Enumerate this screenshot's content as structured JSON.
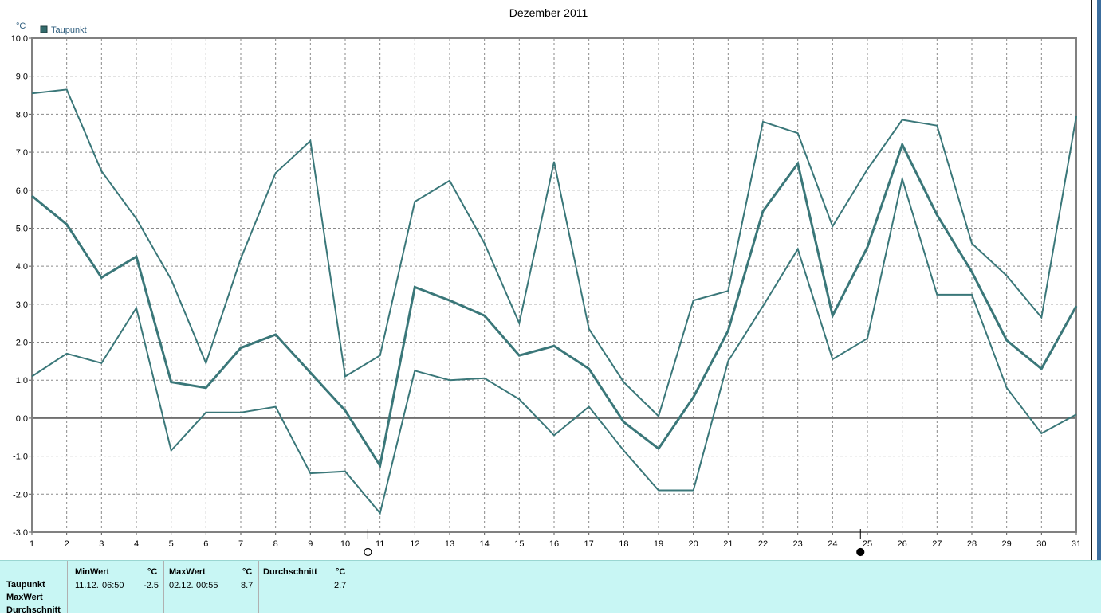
{
  "chart_data": {
    "type": "line",
    "title": "Dezember 2011",
    "unit": "°C",
    "legend": [
      {
        "name": "Taupunkt",
        "color": "#336b6c"
      }
    ],
    "legend_position": "top-left",
    "x": [
      1,
      2,
      3,
      4,
      5,
      6,
      7,
      8,
      9,
      10,
      11,
      12,
      13,
      14,
      15,
      16,
      17,
      18,
      19,
      20,
      21,
      22,
      23,
      24,
      25,
      26,
      27,
      28,
      29,
      30,
      31
    ],
    "ylim": [
      -3.0,
      10.0
    ],
    "yticks": [
      "10.0",
      "9.0",
      "8.0",
      "7.0",
      "6.0",
      "5.0",
      "4.0",
      "3.0",
      "2.0",
      "1.0",
      "0.0",
      "-1.0",
      "-2.0",
      "-3.0"
    ],
    "grid": true,
    "line_color": "#3a7779",
    "series": [
      {
        "values": [
          8.55,
          8.65,
          6.5,
          5.25,
          3.65,
          1.45,
          4.2,
          6.45,
          7.3,
          1.1,
          1.65,
          5.7,
          6.25,
          4.6,
          2.5,
          6.75,
          2.35,
          0.95,
          0.05,
          3.1,
          3.35,
          7.8,
          7.5,
          5.05,
          6.55,
          7.85,
          7.7,
          4.6,
          3.75,
          2.65,
          7.95
        ]
      },
      {
        "values": [
          5.85,
          5.1,
          3.7,
          4.25,
          0.95,
          0.8,
          1.85,
          2.2,
          1.2,
          0.2,
          -1.25,
          3.45,
          3.1,
          2.7,
          1.65,
          1.9,
          1.3,
          -0.1,
          -0.8,
          0.55,
          2.3,
          5.45,
          6.7,
          2.7,
          4.5,
          7.2,
          5.35,
          3.85,
          2.05,
          1.3,
          2.95
        ]
      },
      {
        "values": [
          1.1,
          1.7,
          1.45,
          2.9,
          -0.85,
          0.15,
          0.15,
          0.3,
          -1.45,
          -1.4,
          -2.5,
          1.25,
          1.0,
          1.05,
          0.5,
          -0.45,
          0.3,
          -0.85,
          -1.9,
          -1.9,
          1.5,
          2.95,
          4.45,
          1.55,
          2.1,
          6.3,
          3.25,
          3.25,
          0.8,
          -0.4,
          0.1
        ]
      }
    ],
    "markers": [
      {
        "kind": "min",
        "x": 10.65,
        "symbol": "open-circle"
      },
      {
        "kind": "max",
        "x": 24.8,
        "symbol": "filled-circle"
      }
    ]
  },
  "stats": {
    "row_labels": [
      "Taupunkt",
      "MaxWert",
      "Durchschnitt"
    ],
    "min": {
      "header": "MinWert",
      "unit": "°C",
      "date": "11.12.",
      "time": "06:50",
      "value": "-2.5"
    },
    "max": {
      "header": "MaxWert",
      "unit": "°C",
      "date": "02.12.",
      "time": "00:55",
      "value": "8.7"
    },
    "avg": {
      "header": "Durchschnitt",
      "unit": "°C",
      "value": "2.7"
    }
  }
}
